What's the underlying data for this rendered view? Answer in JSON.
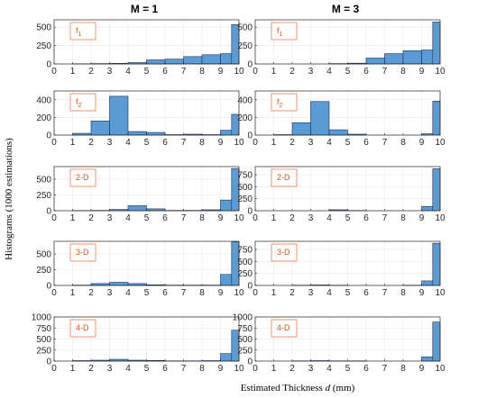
{
  "figure": {
    "xlabel_prefix": "Estimated Thickness ",
    "xlabel_symbol": "d",
    "xlabel_unit": " (mm)",
    "ylabel": "Histograms (1000 estimations)",
    "col_titles": [
      "M = 1",
      "M = 3"
    ],
    "bar_color": "#5b9bd5",
    "bar_edge": "#1f2f55",
    "label_color": "#d95319"
  },
  "chart_data": [
    {
      "type": "bar",
      "column": "M = 1",
      "label": "f",
      "label_sub": "1",
      "x": [
        0.5,
        1.5,
        2.5,
        3.5,
        4.5,
        5.5,
        6.5,
        7.5,
        8.5,
        9.5
      ],
      "values": [
        0,
        2,
        5,
        8,
        18,
        55,
        65,
        100,
        125,
        140
      ],
      "last_value": 535,
      "ylim": [
        0,
        600
      ],
      "yticks": [
        0,
        250,
        500
      ],
      "xlim": [
        0,
        10
      ],
      "xticks": [
        0,
        1,
        2,
        3,
        4,
        5,
        6,
        7,
        8,
        9,
        10
      ]
    },
    {
      "type": "bar",
      "column": "M = 3",
      "label": "f",
      "label_sub": "1",
      "x": [
        0.5,
        1.5,
        2.5,
        3.5,
        4.5,
        5.5,
        6.5,
        7.5,
        8.5,
        9.5
      ],
      "values": [
        0,
        0,
        0,
        0,
        5,
        10,
        80,
        140,
        180,
        190
      ],
      "last_value": 570,
      "ylim": [
        0,
        600
      ],
      "yticks": [
        0,
        250,
        500
      ],
      "xlim": [
        0,
        10
      ],
      "xticks": [
        0,
        1,
        2,
        3,
        4,
        5,
        6,
        7,
        8,
        9,
        10
      ]
    },
    {
      "type": "bar",
      "column": "M = 1",
      "label": "f",
      "label_sub": "2",
      "x": [
        0.5,
        1.5,
        2.5,
        3.5,
        4.5,
        5.5,
        6.5,
        7.5,
        8.5,
        9.5
      ],
      "values": [
        0,
        20,
        160,
        440,
        40,
        30,
        5,
        10,
        5,
        55
      ],
      "last_value": 235,
      "ylim": [
        0,
        500
      ],
      "yticks": [
        0,
        200,
        400
      ],
      "xlim": [
        0,
        10
      ],
      "xticks": [
        0,
        1,
        2,
        3,
        4,
        5,
        6,
        7,
        8,
        9,
        10
      ]
    },
    {
      "type": "bar",
      "column": "M = 3",
      "label": "f",
      "label_sub": "2",
      "x": [
        0.5,
        1.5,
        2.5,
        3.5,
        4.5,
        5.5,
        6.5,
        7.5,
        8.5,
        9.5
      ],
      "values": [
        0,
        5,
        140,
        380,
        60,
        10,
        0,
        0,
        0,
        15
      ],
      "last_value": 385,
      "ylim": [
        0,
        500
      ],
      "yticks": [
        0,
        200,
        400
      ],
      "xlim": [
        0,
        10
      ],
      "xticks": [
        0,
        1,
        2,
        3,
        4,
        5,
        6,
        7,
        8,
        9,
        10
      ]
    },
    {
      "type": "bar",
      "column": "M = 1",
      "label": "2-D",
      "label_sub": "",
      "x": [
        0.5,
        1.5,
        2.5,
        3.5,
        4.5,
        5.5,
        6.5,
        7.5,
        8.5,
        9.5
      ],
      "values": [
        0,
        3,
        5,
        20,
        80,
        30,
        5,
        5,
        15,
        170
      ],
      "last_value": 670,
      "ylim": [
        0,
        700
      ],
      "yticks": [
        0,
        250,
        500
      ],
      "xlim": [
        0,
        10
      ],
      "xticks": [
        0,
        1,
        2,
        3,
        4,
        5,
        6,
        7,
        8,
        9,
        10
      ]
    },
    {
      "type": "bar",
      "column": "M = 3",
      "label": "2-D",
      "label_sub": "",
      "x": [
        0.5,
        1.5,
        2.5,
        3.5,
        4.5,
        5.5,
        6.5,
        7.5,
        8.5,
        9.5
      ],
      "values": [
        0,
        0,
        0,
        0,
        20,
        5,
        0,
        0,
        0,
        90
      ],
      "last_value": 875,
      "ylim": [
        0,
        920
      ],
      "yticks": [
        0,
        250,
        500,
        750
      ],
      "xlim": [
        0,
        10
      ],
      "xticks": [
        0,
        1,
        2,
        3,
        4,
        5,
        6,
        7,
        8,
        9,
        10
      ]
    },
    {
      "type": "bar",
      "column": "M = 1",
      "label": "3-D",
      "label_sub": "",
      "x": [
        0.5,
        1.5,
        2.5,
        3.5,
        4.5,
        5.5,
        6.5,
        7.5,
        8.5,
        9.5
      ],
      "values": [
        0,
        5,
        30,
        50,
        30,
        10,
        5,
        5,
        5,
        175
      ],
      "last_value": 690,
      "ylim": [
        0,
        700
      ],
      "yticks": [
        0,
        250,
        500
      ],
      "xlim": [
        0,
        10
      ],
      "xticks": [
        0,
        1,
        2,
        3,
        4,
        5,
        6,
        7,
        8,
        9,
        10
      ]
    },
    {
      "type": "bar",
      "column": "M = 3",
      "label": "3-D",
      "label_sub": "",
      "x": [
        0.5,
        1.5,
        2.5,
        3.5,
        4.5,
        5.5,
        6.5,
        7.5,
        8.5,
        9.5
      ],
      "values": [
        0,
        0,
        5,
        10,
        5,
        0,
        0,
        0,
        5,
        95
      ],
      "last_value": 880,
      "ylim": [
        0,
        920
      ],
      "yticks": [
        0,
        250,
        500,
        750
      ],
      "xlim": [
        0,
        10
      ],
      "xticks": [
        0,
        1,
        2,
        3,
        4,
        5,
        6,
        7,
        8,
        9,
        10
      ]
    },
    {
      "type": "bar",
      "column": "M = 1",
      "label": "4-D",
      "label_sub": "",
      "x": [
        0.5,
        1.5,
        2.5,
        3.5,
        4.5,
        5.5,
        6.5,
        7.5,
        8.5,
        9.5
      ],
      "values": [
        0,
        10,
        20,
        40,
        20,
        15,
        5,
        5,
        10,
        170
      ],
      "last_value": 700,
      "ylim": [
        0,
        1000
      ],
      "yticks": [
        0,
        250,
        500,
        750,
        1000
      ],
      "xlim": [
        0,
        10
      ],
      "xticks": [
        0,
        1,
        2,
        3,
        4,
        5,
        6,
        7,
        8,
        9,
        10
      ]
    },
    {
      "type": "bar",
      "column": "M = 3",
      "label": "4-D",
      "label_sub": "",
      "x": [
        0.5,
        1.5,
        2.5,
        3.5,
        4.5,
        5.5,
        6.5,
        7.5,
        8.5,
        9.5
      ],
      "values": [
        0,
        0,
        5,
        10,
        5,
        5,
        0,
        0,
        0,
        95
      ],
      "last_value": 885,
      "ylim": [
        0,
        1000
      ],
      "yticks": [
        0,
        250,
        500,
        750,
        1000
      ],
      "xlim": [
        0,
        10
      ],
      "xticks": [
        0,
        1,
        2,
        3,
        4,
        5,
        6,
        7,
        8,
        9,
        10
      ]
    }
  ]
}
